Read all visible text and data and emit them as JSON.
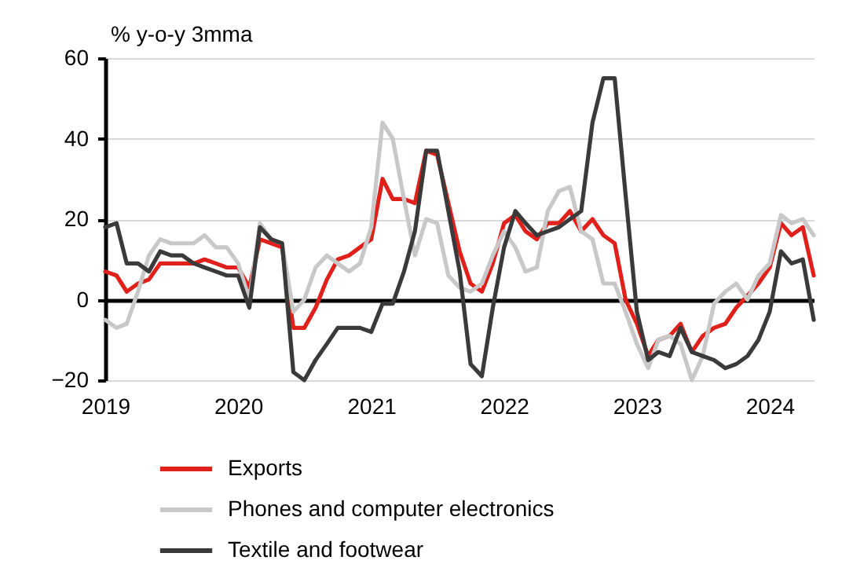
{
  "chart_data": {
    "type": "line",
    "ylabel": "% y-o-y 3mma",
    "x": [
      "2019-01",
      "2019-02",
      "2019-03",
      "2019-04",
      "2019-05",
      "2019-06",
      "2019-07",
      "2019-08",
      "2019-09",
      "2019-10",
      "2019-11",
      "2019-12",
      "2020-01",
      "2020-02",
      "2020-03",
      "2020-04",
      "2020-05",
      "2020-06",
      "2020-07",
      "2020-08",
      "2020-09",
      "2020-10",
      "2020-11",
      "2020-12",
      "2021-01",
      "2021-02",
      "2021-03",
      "2021-04",
      "2021-05",
      "2021-06",
      "2021-07",
      "2021-08",
      "2021-09",
      "2021-10",
      "2021-11",
      "2021-12",
      "2022-01",
      "2022-02",
      "2022-03",
      "2022-04",
      "2022-05",
      "2022-06",
      "2022-07",
      "2022-08",
      "2022-09",
      "2022-10",
      "2022-11",
      "2022-12",
      "2023-01",
      "2023-02",
      "2023-03",
      "2023-04",
      "2023-05",
      "2023-06",
      "2023-07",
      "2023-08",
      "2023-09",
      "2023-10",
      "2023-11",
      "2023-12",
      "2024-01",
      "2024-02",
      "2024-03",
      "2024-04",
      "2024-05"
    ],
    "series": [
      {
        "name": "Exports",
        "color": "#e0201b",
        "values": [
          7,
          6,
          2,
          4,
          5,
          9,
          9,
          9,
          9,
          10,
          9,
          8,
          8,
          3,
          15,
          14,
          13,
          -7,
          -7,
          -2,
          5,
          10,
          11,
          13,
          15,
          30,
          25,
          25,
          24,
          37,
          36,
          24,
          12,
          4,
          2,
          9,
          19,
          21,
          17,
          15,
          19,
          19,
          22,
          17,
          20,
          16,
          14,
          0,
          -6,
          -14,
          -10,
          -9,
          -6,
          -13,
          -9,
          -7,
          -6,
          -2,
          1,
          4,
          8,
          19,
          16,
          18,
          6
        ]
      },
      {
        "name": "Phones and computer electronics",
        "color": "#c8c8c8",
        "values": [
          -5,
          -7,
          -6,
          2,
          11,
          15,
          14,
          14,
          14,
          16,
          13,
          13,
          9,
          0,
          19,
          15,
          14,
          -3,
          0,
          8,
          11,
          9,
          7,
          9,
          18,
          44,
          40,
          25,
          11,
          20,
          19,
          6,
          3,
          2,
          4,
          11,
          17,
          13,
          7,
          8,
          22,
          27,
          28,
          17,
          15,
          4,
          4,
          -3,
          -11,
          -17,
          -10,
          -9,
          -11,
          -20,
          -14,
          -1,
          2,
          4,
          0,
          6,
          9,
          21,
          19,
          20,
          16
        ]
      },
      {
        "name": "Textile and footwear",
        "color": "#3a3a3a",
        "values": [
          18,
          19,
          9,
          9,
          7,
          12,
          11,
          11,
          9,
          8,
          7,
          6,
          6,
          -2,
          18,
          15,
          14,
          -18,
          -20,
          -15,
          -11,
          -7,
          -7,
          -7,
          -8,
          -1,
          -1,
          7,
          17,
          37,
          37,
          22,
          7,
          -16,
          -19,
          -2,
          13,
          22,
          19,
          16,
          17,
          18,
          20,
          22,
          44,
          55,
          55,
          26,
          -3,
          -15,
          -13,
          -14,
          -7,
          -13,
          -14,
          -15,
          -17,
          -16,
          -14,
          -10,
          -3,
          12,
          9,
          10,
          -5
        ]
      }
    ],
    "xlim": [
      "2019-01",
      "2024-05"
    ],
    "xticks": [
      "2019",
      "2020",
      "2021",
      "2022",
      "2023",
      "2024"
    ],
    "ylim": [
      -20,
      60
    ],
    "yticks": [
      -20,
      0,
      20,
      40,
      60
    ],
    "grid": "y",
    "legend": "bottom",
    "line_style": "solid"
  }
}
